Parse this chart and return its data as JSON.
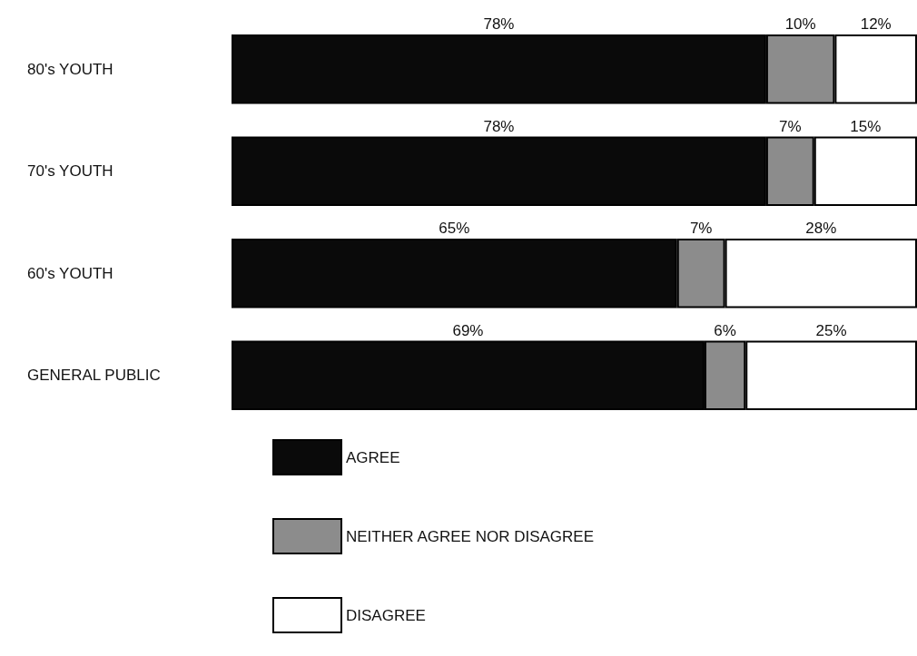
{
  "chart_data": {
    "type": "bar",
    "orientation": "horizontal",
    "stacked": true,
    "categories": [
      "80's YOUTH",
      "70's YOUTH",
      "60's YOUTH",
      "GENERAL PUBLIC"
    ],
    "series": [
      {
        "name": "AGREE",
        "color": "#0a0a0a",
        "values": [
          78,
          78,
          65,
          69
        ],
        "value_labels": [
          "78%",
          "78%",
          "65%",
          "69%"
        ]
      },
      {
        "name": "NEITHER AGREE NOR DISAGREE",
        "color": "#8c8c8c",
        "values": [
          10,
          7,
          7,
          6
        ],
        "value_labels": [
          "10%",
          "7%",
          "7%",
          "6%"
        ]
      },
      {
        "name": "DISAGREE",
        "color": "#ffffff",
        "values": [
          12,
          15,
          28,
          25
        ],
        "value_labels": [
          "12%",
          "15%",
          "28%",
          "25%"
        ]
      }
    ],
    "xlim": [
      0,
      100
    ],
    "tick_labels": "y",
    "legend": "bottom left"
  }
}
